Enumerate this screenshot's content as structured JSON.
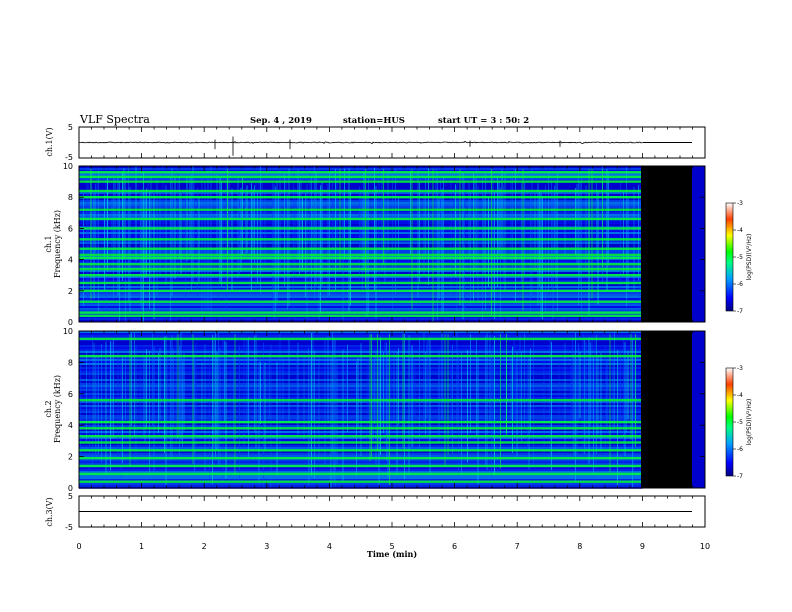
{
  "header": {
    "title": "VLF Spectra",
    "date": "Sep. 4 , 2019",
    "station": "station=HUS",
    "start": "start UT =  3 : 50: 2"
  },
  "chart_data": [
    {
      "name": "ch1-waveform",
      "type": "line",
      "ylabel": "ch.1(V)",
      "ylim": [
        -5,
        5
      ],
      "yticks": [
        "5",
        "-5"
      ],
      "baseline": 0,
      "data_end_min": 9.0
    },
    {
      "name": "ch1-spectrogram",
      "type": "heatmap",
      "ylabel_line1": "ch.1",
      "ylabel_line2": "Frequency  (kHz)",
      "xlim": [
        0,
        10
      ],
      "ylim": [
        0,
        10
      ],
      "yticks": [
        "0",
        "2",
        "4",
        "6",
        "8",
        "10"
      ],
      "data_end_min": 9.0,
      "bright_lines_khz": [
        0.4,
        0.6,
        1.3,
        2.0,
        2.5,
        3.0,
        3.4,
        3.7,
        4.1,
        4.3,
        4.7,
        5.3,
        6.0,
        6.6,
        7.2,
        8.0,
        8.4,
        9.0,
        9.3,
        9.6
      ],
      "colorbar": {
        "label": "log(PSD)(V²/Hz)",
        "range": [
          -7,
          -3
        ],
        "ticks": [
          "-3",
          "-4",
          "-5",
          "-6",
          "-7"
        ]
      }
    },
    {
      "name": "ch2-spectrogram",
      "type": "heatmap",
      "ylabel_line1": "ch.2",
      "ylabel_line2": "Frequency  (kHz)",
      "xlim": [
        0,
        10
      ],
      "ylim": [
        0,
        10
      ],
      "yticks": [
        "0",
        "2",
        "4",
        "6",
        "8",
        "10"
      ],
      "data_end_min": 9.0,
      "bright_lines_khz": [
        0.4,
        0.9,
        1.4,
        1.9,
        2.4,
        2.9,
        3.3,
        3.8,
        4.2,
        5.6,
        8.4,
        9.5
      ],
      "colorbar": {
        "label": "log(PSD)(V²/Hz)",
        "range": [
          -7,
          -3
        ],
        "ticks": [
          "-3",
          "-4",
          "-5",
          "-6",
          "-7"
        ]
      }
    },
    {
      "name": "ch3-waveform",
      "type": "line",
      "ylabel": "ch.3(V)",
      "ylim": [
        -5,
        5
      ],
      "yticks": [
        "5",
        "-5"
      ],
      "baseline": 0,
      "data_end_min": 9.0
    }
  ],
  "xaxis": {
    "label": "Time  (min)",
    "range": [
      0,
      10
    ],
    "ticks": [
      "0",
      "1",
      "2",
      "3",
      "4",
      "5",
      "6",
      "7",
      "8",
      "9",
      "10"
    ]
  },
  "colors": {
    "background": "#ffffff",
    "no_data": "#000000",
    "line": "#000000"
  }
}
